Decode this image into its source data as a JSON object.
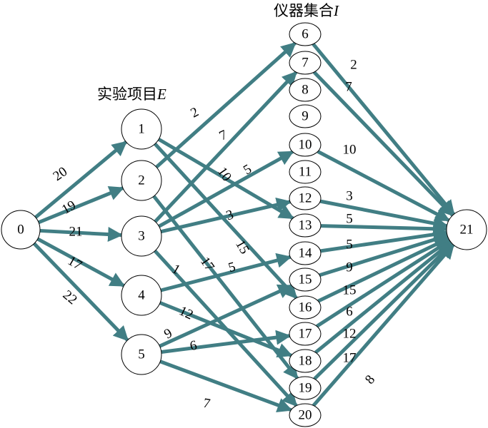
{
  "title_experiments": {
    "text": "实验项目",
    "var": "E"
  },
  "title_instruments": {
    "text": "仪器集合",
    "var": "I"
  },
  "colors": {
    "edge": "#417e84",
    "node_stroke": "#000000",
    "node_fill": "#ffffff"
  },
  "nodes": [
    {
      "id": "0",
      "label": "0"
    },
    {
      "id": "1",
      "label": "1"
    },
    {
      "id": "2",
      "label": "2"
    },
    {
      "id": "3",
      "label": "3"
    },
    {
      "id": "4",
      "label": "4"
    },
    {
      "id": "5",
      "label": "5"
    },
    {
      "id": "6",
      "label": "6"
    },
    {
      "id": "7",
      "label": "7"
    },
    {
      "id": "8",
      "label": "8"
    },
    {
      "id": "9",
      "label": "9"
    },
    {
      "id": "10",
      "label": "10"
    },
    {
      "id": "11",
      "label": "11"
    },
    {
      "id": "12",
      "label": "12"
    },
    {
      "id": "13",
      "label": "13"
    },
    {
      "id": "14",
      "label": "14"
    },
    {
      "id": "15",
      "label": "15"
    },
    {
      "id": "16",
      "label": "16"
    },
    {
      "id": "17",
      "label": "17"
    },
    {
      "id": "18",
      "label": "18"
    },
    {
      "id": "19",
      "label": "19"
    },
    {
      "id": "20",
      "label": "20"
    },
    {
      "id": "21",
      "label": "21"
    }
  ],
  "edges": [
    {
      "from": "0",
      "to": "1",
      "label": "20"
    },
    {
      "from": "0",
      "to": "2",
      "label": "19"
    },
    {
      "from": "0",
      "to": "3",
      "label": "21"
    },
    {
      "from": "0",
      "to": "4",
      "label": "17"
    },
    {
      "from": "0",
      "to": "5",
      "label": "22"
    },
    {
      "from": "1",
      "to": "13",
      "label": ""
    },
    {
      "from": "1",
      "to": "16",
      "label": "15"
    },
    {
      "from": "2",
      "to": "6",
      "label": "2"
    },
    {
      "from": "2",
      "to": "19",
      "label": "17"
    },
    {
      "from": "3",
      "to": "7",
      "label": "7"
    },
    {
      "from": "3",
      "to": "10",
      "label": "5"
    },
    {
      "from": "3",
      "to": "12",
      "label": "3"
    },
    {
      "from": "3",
      "to": "20",
      "label": "1"
    },
    {
      "from": "4",
      "to": "14",
      "label": "5"
    },
    {
      "from": "4",
      "to": "18",
      "label": "12"
    },
    {
      "from": "5",
      "to": "15",
      "label": "9"
    },
    {
      "from": "5",
      "to": "17",
      "label": "6"
    },
    {
      "from": "5",
      "to": "20",
      "label": "7"
    },
    {
      "from": "6",
      "to": "21",
      "label": "2"
    },
    {
      "from": "7",
      "to": "21",
      "label": "7"
    },
    {
      "from": "10",
      "to": "21",
      "label": "10"
    },
    {
      "from": "12",
      "to": "21",
      "label": "3"
    },
    {
      "from": "13",
      "to": "21",
      "label": "5"
    },
    {
      "from": "14",
      "to": "21",
      "label": "5"
    },
    {
      "from": "15",
      "to": "21",
      "label": "9"
    },
    {
      "from": "16",
      "to": "21",
      "label": "15"
    },
    {
      "from": "17",
      "to": "21",
      "label": "6"
    },
    {
      "from": "18",
      "to": "21",
      "label": "12"
    },
    {
      "from": "19",
      "to": "21",
      "label": "17"
    },
    {
      "from": "20",
      "to": "21",
      "label": "8"
    }
  ],
  "extra_labels": [
    {
      "label": "10"
    }
  ]
}
